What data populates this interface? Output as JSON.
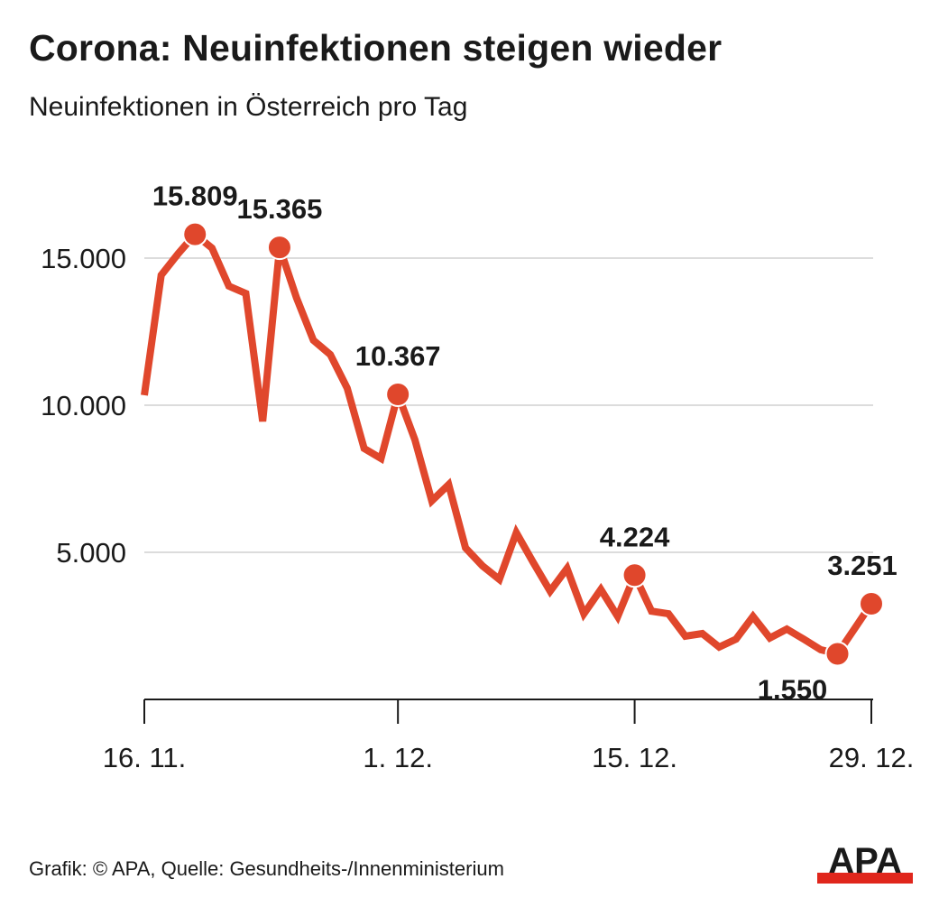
{
  "title": "Corona: Neuinfektionen steigen wieder",
  "subtitle": "Neuinfektionen in Österreich pro Tag",
  "footer": "Grafik: © APA, Quelle: Gesundheits-/Innenministerium",
  "logo": "APA",
  "colors": {
    "line": "#e0472c",
    "grid": "#dcdcdc",
    "axis": "#1a1a1a"
  },
  "chart_data": {
    "type": "line",
    "title": "Corona: Neuinfektionen steigen wieder",
    "subtitle": "Neuinfektionen in Österreich pro Tag",
    "ylim": [
      0,
      17000
    ],
    "yticks": [
      5000,
      10000,
      15000
    ],
    "ytick_labels": [
      "5.000",
      "10.000",
      "15.000"
    ],
    "xticks": [
      "16.11.",
      "1.12.",
      "15.12.",
      "29.12."
    ],
    "xtick_labels": [
      "16. 11.",
      "1. 12.",
      "15. 12.",
      "29. 12."
    ],
    "grid": true,
    "x": [
      "16.11.",
      "17.11.",
      "18.11.",
      "19.11.",
      "20.11.",
      "21.11.",
      "22.11.",
      "23.11.",
      "24.11.",
      "25.11.",
      "26.11.",
      "27.11.",
      "28.11.",
      "29.11.",
      "30.11.",
      "1.12.",
      "2.12.",
      "3.12.",
      "4.12.",
      "5.12.",
      "6.12.",
      "7.12.",
      "8.12.",
      "9.12.",
      "10.12.",
      "11.12.",
      "12.12.",
      "13.12.",
      "14.12.",
      "15.12.",
      "16.12.",
      "17.12.",
      "18.12.",
      "19.12.",
      "20.12.",
      "21.12.",
      "22.12.",
      "23.12.",
      "24.12.",
      "25.12.",
      "26.12.",
      "27.12.",
      "28.12.",
      "29.12."
    ],
    "values": [
      10340,
      14420,
      15150,
      15809,
      15340,
      14050,
      13800,
      9450,
      15365,
      13650,
      12210,
      11720,
      10580,
      8530,
      8190,
      10367,
      8830,
      6750,
      7300,
      5150,
      4540,
      4080,
      5670,
      4660,
      3680,
      4450,
      2910,
      3740,
      2820,
      4224,
      3000,
      2910,
      2150,
      2240,
      1780,
      2050,
      2820,
      2090,
      2390,
      2050,
      1690,
      1550,
      2400,
      3251
    ],
    "annotations": [
      {
        "x": "19.11.",
        "value": 15809,
        "label": "15.809"
      },
      {
        "x": "24.11.",
        "value": 15365,
        "label": "15.365"
      },
      {
        "x": "1.12.",
        "value": 10367,
        "label": "10.367"
      },
      {
        "x": "15.12.",
        "value": 4224,
        "label": "4.224"
      },
      {
        "x": "27.12.",
        "value": 1550,
        "label": "1.550"
      },
      {
        "x": "29.12.",
        "value": 3251,
        "label": "3.251"
      }
    ]
  }
}
